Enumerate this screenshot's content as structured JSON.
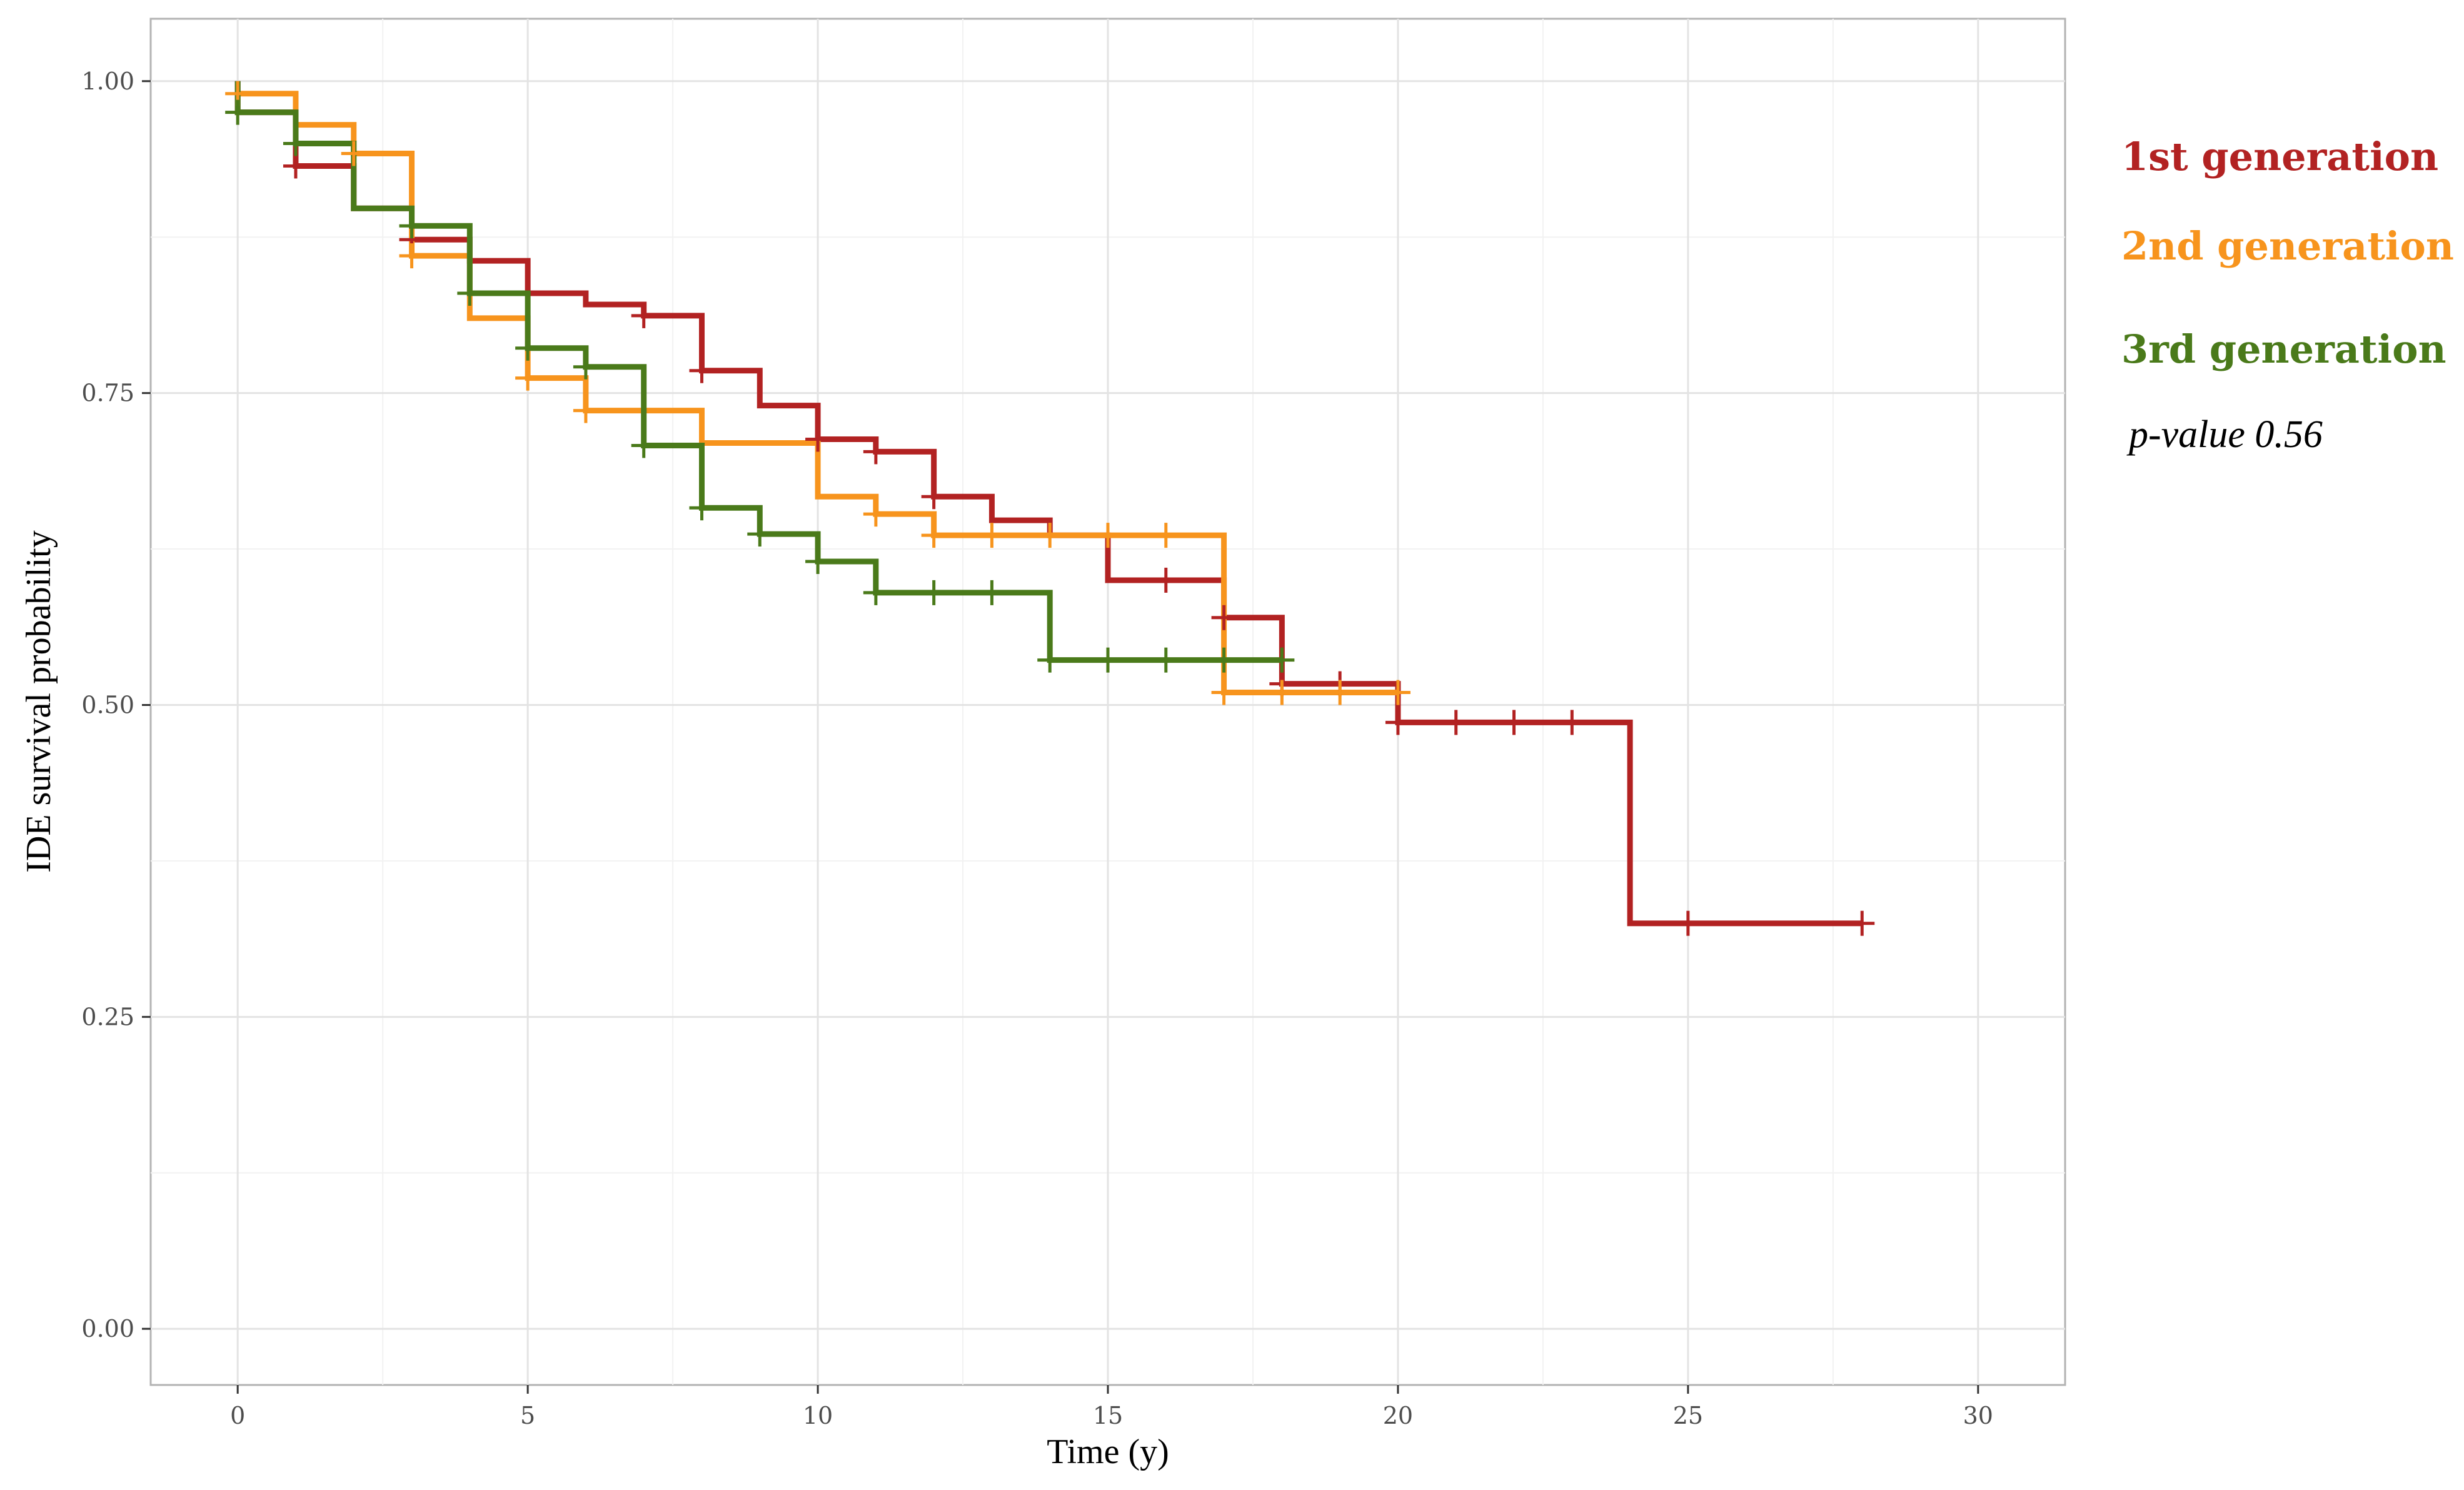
{
  "chart_data": {
    "type": "line",
    "step": true,
    "xlabel": "Time (y)",
    "ylabel": "IDE survival probability",
    "xlim": [
      -1.5,
      31.5
    ],
    "ylim": [
      -0.045,
      1.05
    ],
    "x_ticks": [
      0,
      5,
      10,
      15,
      20,
      25,
      30
    ],
    "y_ticks": [
      0,
      0.25,
      0.5,
      0.75,
      1.0
    ],
    "x_tick_labels": [
      "0",
      "5",
      "10",
      "15",
      "20",
      "25",
      "30"
    ],
    "y_tick_labels": [
      "0.00",
      "0.25",
      "0.50",
      "0.75",
      "1.00"
    ],
    "grid": true,
    "legend_position": "right",
    "annotation": "p-value 0.56",
    "series": [
      {
        "name": "1st generation",
        "color": "#B22222",
        "steps": [
          [
            0,
            1.0
          ],
          [
            0,
            0.975
          ],
          [
            1,
            0.932
          ],
          [
            2,
            0.898
          ],
          [
            3,
            0.873
          ],
          [
            4,
            0.856
          ],
          [
            5,
            0.83
          ],
          [
            6,
            0.821
          ],
          [
            7,
            0.812
          ],
          [
            8,
            0.768
          ],
          [
            9,
            0.74
          ],
          [
            10,
            0.713
          ],
          [
            11,
            0.703
          ],
          [
            12,
            0.667
          ],
          [
            13,
            0.648
          ],
          [
            14,
            0.636
          ],
          [
            15,
            0.6
          ],
          [
            17,
            0.57
          ],
          [
            18,
            0.517
          ],
          [
            20,
            0.486
          ],
          [
            24,
            0.325
          ],
          [
            28,
            0.325
          ]
        ],
        "censored": [
          [
            1,
            0.932
          ],
          [
            3,
            0.873
          ],
          [
            7,
            0.812
          ],
          [
            8,
            0.768
          ],
          [
            10,
            0.713
          ],
          [
            11,
            0.703
          ],
          [
            12,
            0.667
          ],
          [
            16,
            0.6
          ],
          [
            17,
            0.57
          ],
          [
            18,
            0.517
          ],
          [
            19,
            0.517
          ],
          [
            20,
            0.486
          ],
          [
            21,
            0.486
          ],
          [
            22,
            0.486
          ],
          [
            23,
            0.486
          ],
          [
            25,
            0.325
          ],
          [
            28,
            0.325
          ]
        ]
      },
      {
        "name": "2nd generation",
        "color": "#F7941D",
        "steps": [
          [
            0,
            0.99
          ],
          [
            1,
            0.965
          ],
          [
            2,
            0.942
          ],
          [
            3,
            0.86
          ],
          [
            4,
            0.81
          ],
          [
            5,
            0.762
          ],
          [
            6,
            0.736
          ],
          [
            8,
            0.71
          ],
          [
            10,
            0.667
          ],
          [
            11,
            0.653
          ],
          [
            12,
            0.636
          ],
          [
            17,
            0.51
          ],
          [
            20,
            0.51
          ]
        ],
        "censored": [
          [
            0,
            0.99
          ],
          [
            2,
            0.942
          ],
          [
            3,
            0.86
          ],
          [
            5,
            0.762
          ],
          [
            6,
            0.736
          ],
          [
            11,
            0.653
          ],
          [
            12,
            0.636
          ],
          [
            13,
            0.636
          ],
          [
            14,
            0.636
          ],
          [
            15,
            0.636
          ],
          [
            16,
            0.636
          ],
          [
            17,
            0.51
          ],
          [
            18,
            0.51
          ],
          [
            19,
            0.51
          ],
          [
            20,
            0.51
          ]
        ]
      },
      {
        "name": "3rd generation",
        "color": "#4A7A1A",
        "steps": [
          [
            0,
            1.0
          ],
          [
            0,
            0.975
          ],
          [
            1,
            0.95
          ],
          [
            2,
            0.898
          ],
          [
            3,
            0.884
          ],
          [
            4,
            0.83
          ],
          [
            5,
            0.786
          ],
          [
            6,
            0.771
          ],
          [
            7,
            0.708
          ],
          [
            8,
            0.658
          ],
          [
            9,
            0.637
          ],
          [
            10,
            0.615
          ],
          [
            11,
            0.59
          ],
          [
            14,
            0.536
          ],
          [
            18,
            0.536
          ]
        ],
        "censored": [
          [
            0,
            0.975
          ],
          [
            1,
            0.95
          ],
          [
            3,
            0.884
          ],
          [
            4,
            0.83
          ],
          [
            5,
            0.786
          ],
          [
            6,
            0.771
          ],
          [
            7,
            0.708
          ],
          [
            8,
            0.658
          ],
          [
            9,
            0.637
          ],
          [
            10,
            0.615
          ],
          [
            11,
            0.59
          ],
          [
            12,
            0.59
          ],
          [
            13,
            0.59
          ],
          [
            14,
            0.536
          ],
          [
            15,
            0.536
          ],
          [
            16,
            0.536
          ],
          [
            17,
            0.536
          ],
          [
            18,
            0.536
          ]
        ]
      }
    ]
  }
}
